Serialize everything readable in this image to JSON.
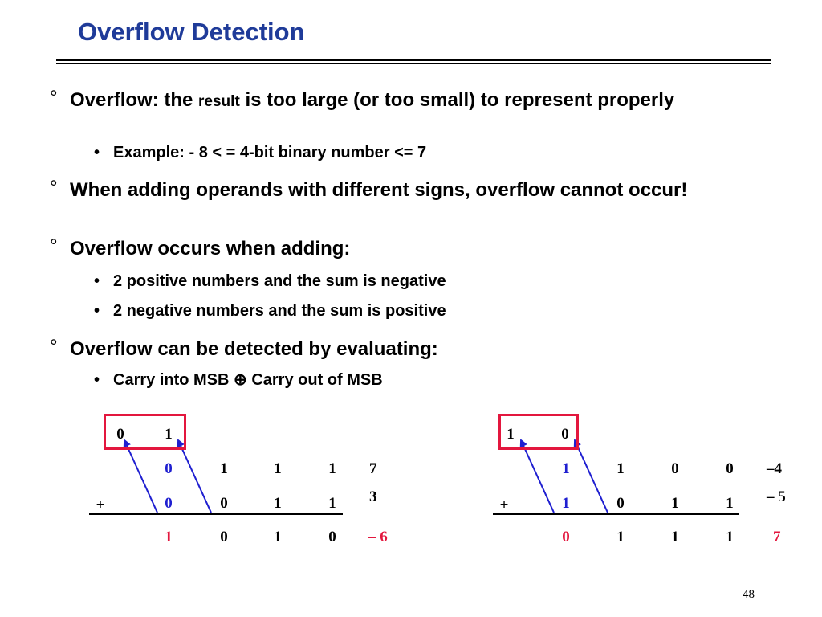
{
  "title": "Overflow Detection",
  "bullets": {
    "b1_pre": "Overflow: the ",
    "b1_small": "result",
    "b1_post": " is too large (or too small) to represent properly",
    "b1_sub1": "Example: - 8 < = 4-bit binary number <= 7",
    "b2": "When adding operands with different signs, overflow cannot occur!",
    "b3": "Overflow occurs when adding:",
    "b3_sub1": "2 positive numbers and the sum is negative",
    "b3_sub2": "2 negative numbers and the sum is positive",
    "b4": "Overflow can be detected by evaluating:",
    "b4_sub1": "Carry into MSB ⊕ Carry out of MSB"
  },
  "marks": {
    "level1": "°",
    "level2": "•"
  },
  "example_left": {
    "carry": [
      "0",
      "1"
    ],
    "row1": [
      "0",
      "1",
      "1",
      "1"
    ],
    "row1_value": "7",
    "plus": "+",
    "row2": [
      "0",
      "0",
      "1",
      "1"
    ],
    "row2_value": "3",
    "sum": [
      "1",
      "0",
      "1",
      "0"
    ],
    "sum_value": "– 6"
  },
  "example_right": {
    "carry": [
      "1",
      "0"
    ],
    "row1": [
      "1",
      "1",
      "0",
      "0"
    ],
    "row1_value": "–4",
    "plus": "+",
    "row2": [
      "1",
      "0",
      "1",
      "1"
    ],
    "row2_value": "– 5",
    "sum": [
      "0",
      "1",
      "1",
      "1"
    ],
    "sum_value": "7"
  },
  "colors": {
    "title": "#1f3b99",
    "msb_operand": "#1f1fd0",
    "result": "#e3173e",
    "carry_box": "#e3173e"
  },
  "page_number": "48"
}
